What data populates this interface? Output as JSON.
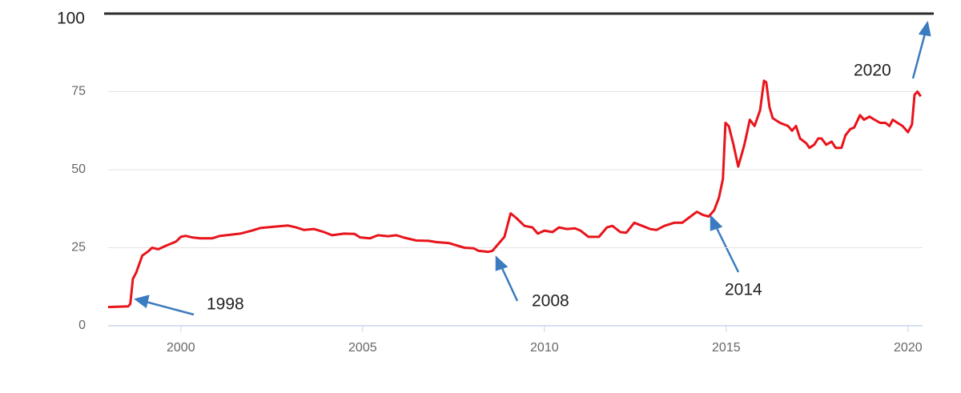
{
  "chart_data": {
    "type": "line",
    "x": [
      1998.0,
      1998.55,
      1998.61,
      1998.68,
      1998.77,
      1998.94,
      1999.12,
      1999.21,
      1999.38,
      1999.56,
      1999.87,
      2000.0,
      2000.13,
      2000.31,
      2000.53,
      2000.86,
      2001.08,
      2001.63,
      2001.96,
      2002.18,
      2002.62,
      2002.95,
      2003.17,
      2003.39,
      2003.66,
      2003.94,
      2004.16,
      2004.49,
      2004.78,
      2004.93,
      2005.2,
      2005.42,
      2005.7,
      2005.93,
      2006.15,
      2006.48,
      2006.81,
      2007.03,
      2007.36,
      2007.8,
      2008.06,
      2008.19,
      2008.46,
      2008.57,
      2008.9,
      2009.07,
      2009.23,
      2009.45,
      2009.67,
      2009.82,
      2010.0,
      2010.22,
      2010.4,
      2010.62,
      2010.84,
      2010.99,
      2011.21,
      2011.5,
      2011.72,
      2011.87,
      2012.09,
      2012.25,
      2012.47,
      2012.69,
      2012.91,
      2013.08,
      2013.3,
      2013.57,
      2013.79,
      2013.96,
      2014.19,
      2014.36,
      2014.52,
      2014.67,
      2014.8,
      2014.91,
      2014.98,
      2015.07,
      2015.2,
      2015.33,
      2015.5,
      2015.65,
      2015.78,
      2015.93,
      2016.04,
      2016.1,
      2016.19,
      2016.28,
      2016.48,
      2016.7,
      2016.81,
      2016.92,
      2017.03,
      2017.2,
      2017.29,
      2017.42,
      2017.53,
      2017.62,
      2017.75,
      2017.9,
      2018.01,
      2018.17,
      2018.28,
      2018.41,
      2018.52,
      2018.68,
      2018.79,
      2018.94,
      2019.08,
      2019.23,
      2019.38,
      2019.49,
      2019.58,
      2019.71,
      2019.85,
      2020.0,
      2020.11,
      2020.18,
      2020.26,
      2020.35
    ],
    "series": [
      {
        "color": "#e8141b",
        "values": [
          6,
          6.2,
          7,
          15,
          17,
          22.5,
          24,
          25,
          24.5,
          25.5,
          27,
          28.5,
          28.8,
          28.3,
          28,
          28,
          28.8,
          29.5,
          30.5,
          31.3,
          31.8,
          32.1,
          31.5,
          30.7,
          31,
          30,
          29,
          29.5,
          29.4,
          28.3,
          28,
          29,
          28.7,
          29,
          28.2,
          27.3,
          27.2,
          26.8,
          26.5,
          25,
          24.8,
          24,
          23.7,
          24,
          28.5,
          36,
          34.5,
          32,
          31.5,
          29.5,
          30.5,
          30,
          31.5,
          31,
          31.2,
          30.5,
          28.5,
          28.5,
          31.5,
          32,
          30,
          29.8,
          33,
          32,
          31,
          30.7,
          32,
          33,
          33,
          34.5,
          36.5,
          35.5,
          35,
          37,
          41,
          47,
          65,
          64,
          58,
          51,
          58,
          66,
          64,
          69,
          78.5,
          78,
          70,
          66.5,
          65,
          64,
          62.5,
          64,
          60,
          58.5,
          57,
          58,
          60,
          60,
          58,
          59,
          57,
          57,
          61,
          63,
          63.5,
          67.5,
          66,
          67,
          66,
          65,
          65,
          64,
          66,
          65,
          64,
          62,
          64.5,
          74,
          75,
          73.5
        ]
      }
    ],
    "xlim": [
      1998.0,
      2020.4
    ],
    "xticks": [
      2000,
      2005,
      2010,
      2015,
      2020
    ],
    "ylim": [
      0,
      100
    ],
    "yticks": [
      0,
      25,
      50,
      75,
      100
    ],
    "grid": true,
    "annotations": [
      "1998",
      "2008",
      "2014",
      "2020"
    ]
  }
}
